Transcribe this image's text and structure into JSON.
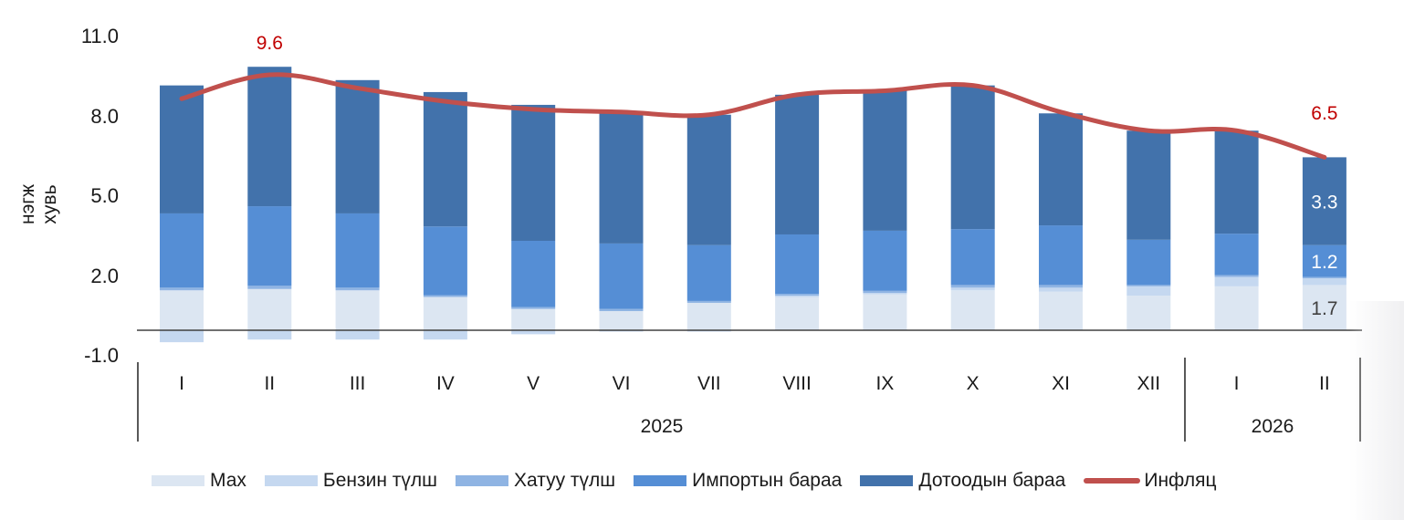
{
  "chart_data": {
    "type": "bar",
    "stacked": true,
    "title": "",
    "ylabel": "нэгж хувь",
    "xlabel": "",
    "ylim": [
      -1.0,
      11.0
    ],
    "yticks": [
      "11.0",
      "8.0",
      "5.0",
      "2.0",
      "-1.0"
    ],
    "grid": false,
    "legend_position": "bottom",
    "categories": [
      "I",
      "II",
      "III",
      "IV",
      "V",
      "VI",
      "VII",
      "VIII",
      "IX",
      "X",
      "XI",
      "XII",
      "I",
      "II"
    ],
    "groups": [
      {
        "label": "2025",
        "start": 0,
        "end": 11
      },
      {
        "label": "2026",
        "start": 12,
        "end": 13
      }
    ],
    "series": [
      {
        "name": "Мах",
        "type": "bar",
        "color": "#dce6f2",
        "values": [
          1.5,
          1.55,
          1.5,
          1.25,
          0.8,
          0.72,
          1.03,
          1.25,
          1.35,
          1.5,
          1.45,
          1.3,
          1.65,
          1.7
        ]
      },
      {
        "name": "Бензин түлш",
        "type": "bar",
        "color": "#c5d8f0",
        "values": [
          -0.45,
          -0.35,
          -0.35,
          -0.35,
          -0.15,
          -0.05,
          -0.05,
          0.05,
          0.05,
          0.1,
          0.15,
          0.35,
          0.35,
          0.25
        ]
      },
      {
        "name": "Хатуу түлш",
        "type": "bar",
        "color": "#8fb4e3",
        "values": [
          0.1,
          0.12,
          0.1,
          0.07,
          0.07,
          0.08,
          0.07,
          0.07,
          0.08,
          0.1,
          0.1,
          0.05,
          0.07,
          0.05
        ]
      },
      {
        "name": "Импортын бараа",
        "type": "bar",
        "color": "#558ed5",
        "values": [
          2.79,
          2.99,
          2.79,
          2.58,
          2.49,
          2.46,
          2.1,
          2.23,
          2.26,
          2.1,
          2.24,
          1.7,
          1.56,
          1.2
        ]
      },
      {
        "name": "Дотоодын бараа",
        "type": "bar",
        "color": "#4272ab",
        "values": [
          4.81,
          5.24,
          5.01,
          5.05,
          5.11,
          4.97,
          4.9,
          5.25,
          5.26,
          5.4,
          4.21,
          4.1,
          3.87,
          3.3
        ]
      },
      {
        "name": "Инфляц",
        "type": "line",
        "color": "#c0504d",
        "values": [
          8.7,
          9.6,
          9.1,
          8.6,
          8.3,
          8.2,
          8.1,
          8.85,
          9.0,
          9.2,
          8.2,
          7.5,
          7.5,
          6.5
        ]
      }
    ],
    "annotations": [
      {
        "text": "9.6",
        "series": "Инфляц",
        "index": 1,
        "color": "#c00000"
      },
      {
        "text": "6.5",
        "series": "Инфляц",
        "index": 13,
        "color": "#c00000"
      },
      {
        "text": "3.3",
        "series": "Дотоодын бараа",
        "index": 13,
        "color": "#ffffff"
      },
      {
        "text": "1.2",
        "series": "Импортын бараа",
        "index": 13,
        "color": "#ffffff"
      },
      {
        "text": "1.7",
        "series": "Мах",
        "index": 13,
        "color": "#404040"
      }
    ]
  },
  "axis": {
    "ylabel": "нэгж хувь",
    "yticks": [
      {
        "label": "11.0",
        "value": 11.0
      },
      {
        "label": "8.0",
        "value": 8.0
      },
      {
        "label": "5.0",
        "value": 5.0
      },
      {
        "label": "2.0",
        "value": 2.0
      },
      {
        "label": "-1.0",
        "value": -1.0
      }
    ],
    "years": [
      {
        "label": "2025"
      },
      {
        "label": "2026"
      }
    ]
  },
  "legend": {
    "items": [
      {
        "label": "Мах",
        "kind": "bar",
        "color": "#dce6f2"
      },
      {
        "label": "Бензин түлш",
        "kind": "bar",
        "color": "#c5d8f0"
      },
      {
        "label": "Хатуу түлш",
        "kind": "bar",
        "color": "#8fb4e3"
      },
      {
        "label": "Импортын бараа",
        "kind": "bar",
        "color": "#558ed5"
      },
      {
        "label": "Дотоодын бараа",
        "kind": "bar",
        "color": "#4272ab"
      },
      {
        "label": "Инфляц",
        "kind": "line",
        "color": "#c0504d"
      }
    ]
  }
}
